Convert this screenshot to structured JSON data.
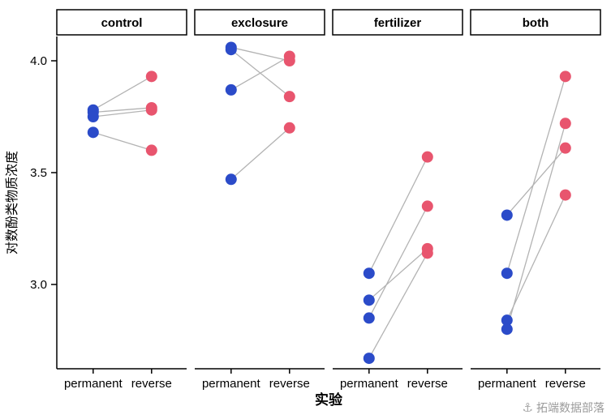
{
  "watermark": {
    "text": "拓端数据部落",
    "logo": "⚓"
  },
  "chart_data": {
    "type": "scatter",
    "subtype": "paired-dot-plot-faceted",
    "title": "",
    "xlabel": "实验",
    "ylabel": "对数酚类物质浓度",
    "facets": [
      "control",
      "exclosure",
      "fertilizer",
      "both"
    ],
    "x_categories": [
      "permanent",
      "reverse"
    ],
    "yticks": [
      3.0,
      3.5,
      4.0
    ],
    "ylim": [
      2.6,
      4.15
    ],
    "grid": "off",
    "legend": "none",
    "colors": {
      "permanent": "#2b4bc9",
      "reverse": "#e8556e",
      "pair_line": "#b3b3b3"
    },
    "pairs": {
      "control": [
        [
          3.78,
          3.93
        ],
        [
          3.77,
          3.79
        ],
        [
          3.75,
          3.78
        ],
        [
          3.68,
          3.6
        ]
      ],
      "exclosure": [
        [
          4.06,
          4.0
        ],
        [
          4.05,
          3.84
        ],
        [
          3.87,
          4.02
        ],
        [
          3.47,
          3.7
        ]
      ],
      "fertilizer": [
        [
          3.05,
          3.57
        ],
        [
          2.93,
          3.16
        ],
        [
          2.85,
          3.35
        ],
        [
          2.67,
          3.14
        ]
      ],
      "both": [
        [
          3.31,
          3.61
        ],
        [
          3.05,
          3.93
        ],
        [
          2.84,
          3.4
        ],
        [
          2.8,
          3.72
        ]
      ]
    }
  }
}
